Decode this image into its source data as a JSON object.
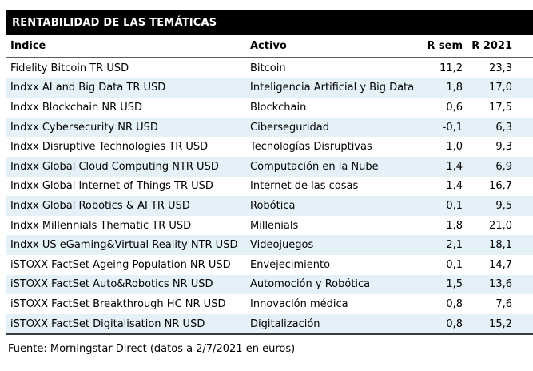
{
  "title": "RENTABILIDAD DE LAS TEMÁTICAS",
  "columns": {
    "indice": "Índice",
    "activo": "Activo",
    "r_sem": "R sem",
    "r_2021": "R 2021"
  },
  "rows": [
    {
      "indice": "Fidelity Bitcoin TR USD",
      "activo": "Bitcoin",
      "r_sem": "11,2",
      "r_2021": "23,3"
    },
    {
      "indice": "Indxx AI and Big Data TR USD",
      "activo": "Inteligencia Artificial y Big Data",
      "r_sem": "1,8",
      "r_2021": "17,0"
    },
    {
      "indice": "Indxx Blockchain NR USD",
      "activo": "Blockchain",
      "r_sem": "0,6",
      "r_2021": "17,5"
    },
    {
      "indice": "Indxx Cybersecurity NR USD",
      "activo": "Ciberseguridad",
      "r_sem": "-0,1",
      "r_2021": "6,3"
    },
    {
      "indice": "Indxx Disruptive Technologies TR USD",
      "activo": "Tecnologías Disruptivas",
      "r_sem": "1,0",
      "r_2021": "9,3"
    },
    {
      "indice": "Indxx Global Cloud Computing NTR USD",
      "activo": "Computación en la Nube",
      "r_sem": "1,4",
      "r_2021": "6,9"
    },
    {
      "indice": "Indxx Global Internet of Things TR USD",
      "activo": "Internet de las cosas",
      "r_sem": "1,4",
      "r_2021": "16,7"
    },
    {
      "indice": "Indxx Global Robotics & AI TR USD",
      "activo": "Robótica",
      "r_sem": "0,1",
      "r_2021": "9,5"
    },
    {
      "indice": "Indxx Millennials Thematic TR USD",
      "activo": "Millenials",
      "r_sem": "1,8",
      "r_2021": "21,0"
    },
    {
      "indice": "Indxx US eGaming&Virtual Reality NTR USD",
      "activo": "Videojuegos",
      "r_sem": "2,1",
      "r_2021": "18,1"
    },
    {
      "indice": "iSTOXX FactSet Ageing Population NR USD",
      "activo": "Envejecimiento",
      "r_sem": "-0,1",
      "r_2021": "14,7"
    },
    {
      "indice": "iSTOXX FactSet Auto&Robotics NR USD",
      "activo": "Automoción y Robótica",
      "r_sem": "1,5",
      "r_2021": "13,6"
    },
    {
      "indice": "iSTOXX FactSet Breakthrough HC NR USD",
      "activo": "Innovación médica",
      "r_sem": "0,8",
      "r_2021": "7,6"
    },
    {
      "indice": "iSTOXX FactSet Digitalisation NR USD",
      "activo": "Digitalización",
      "r_sem": "0,8",
      "r_2021": "15,2"
    }
  ],
  "footer": "Fuente: Morningstar Direct (datos a 2/7/2021 en euros)",
  "colors": {
    "header_bg": "#000000",
    "header_text": "#ffffff",
    "row_alt": "#e4f1f8",
    "rule": "#5a5a5a",
    "bottom_rule": "#3c3c3c"
  }
}
